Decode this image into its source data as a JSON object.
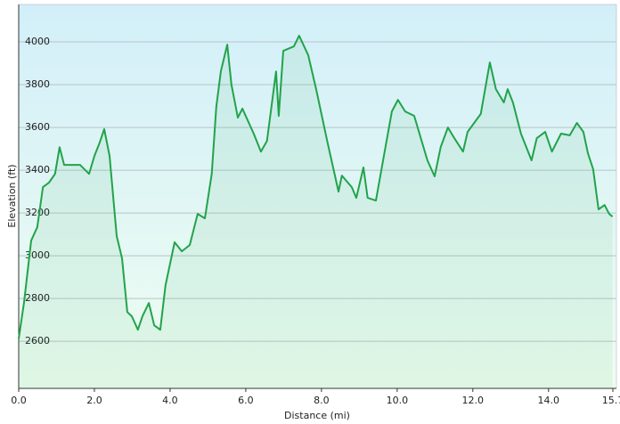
{
  "chart_data": {
    "type": "line",
    "x_label": "Distance  (mi)",
    "y_label": "Elevation (ft)",
    "xlim": [
      0,
      15.7
    ],
    "ylim": [
      2380,
      4175
    ],
    "xticks": [
      {
        "value": 0,
        "label": "0.0"
      },
      {
        "value": 2,
        "label": "2.0"
      },
      {
        "value": 4,
        "label": "4.0"
      },
      {
        "value": 6,
        "label": "6.0"
      },
      {
        "value": 8,
        "label": "8.0"
      },
      {
        "value": 10,
        "label": "10.0"
      },
      {
        "value": 12,
        "label": "12.0"
      },
      {
        "value": 14,
        "label": "14.0"
      },
      {
        "value": 15.7,
        "label": "15.7"
      }
    ],
    "yticks": [
      2600,
      2800,
      3000,
      3200,
      3400,
      3600,
      3800,
      4000
    ],
    "grid": true,
    "series": [
      {
        "color": "#22a34a",
        "x": [
          0,
          0.14,
          0.33,
          0.49,
          0.64,
          0.8,
          0.96,
          1.08,
          1.2,
          1.62,
          1.86,
          2.0,
          2.14,
          2.26,
          2.4,
          2.59,
          2.73,
          2.87,
          2.99,
          3.15,
          3.27,
          3.44,
          3.58,
          3.74,
          3.88,
          4.12,
          4.31,
          4.52,
          4.73,
          4.92,
          5.1,
          5.22,
          5.34,
          5.51,
          5.62,
          5.79,
          5.91,
          6.21,
          6.4,
          6.56,
          6.8,
          6.87,
          6.99,
          7.27,
          7.41,
          7.65,
          7.86,
          8.16,
          8.45,
          8.54,
          8.8,
          8.92,
          9.11,
          9.22,
          9.44,
          9.67,
          9.86,
          10.02,
          10.21,
          10.45,
          10.8,
          10.99,
          11.15,
          11.34,
          11.51,
          11.74,
          11.86,
          12.21,
          12.45,
          12.61,
          12.82,
          12.92,
          13.06,
          13.27,
          13.55,
          13.69,
          13.91,
          14.09,
          14.33,
          14.56,
          14.75,
          14.92,
          15.04,
          15.18,
          15.32,
          15.48,
          15.6,
          15.69
        ],
        "values": [
          2612,
          2779,
          3071,
          3133,
          3321,
          3342,
          3383,
          3508,
          3425,
          3425,
          3383,
          3467,
          3529,
          3592,
          3467,
          3092,
          2988,
          2737,
          2717,
          2654,
          2717,
          2779,
          2675,
          2654,
          2862,
          3063,
          3021,
          3050,
          3196,
          3175,
          3383,
          3696,
          3862,
          3987,
          3800,
          3646,
          3688,
          3571,
          3487,
          3537,
          3862,
          3654,
          3958,
          3979,
          4029,
          3938,
          3779,
          3529,
          3300,
          3375,
          3321,
          3271,
          3413,
          3271,
          3258,
          3487,
          3675,
          3729,
          3675,
          3654,
          3446,
          3371,
          3508,
          3600,
          3550,
          3487,
          3579,
          3663,
          3904,
          3779,
          3717,
          3779,
          3717,
          3571,
          3446,
          3550,
          3579,
          3487,
          3571,
          3563,
          3621,
          3579,
          3479,
          3404,
          3217,
          3237,
          3196,
          3183
        ]
      }
    ]
  }
}
